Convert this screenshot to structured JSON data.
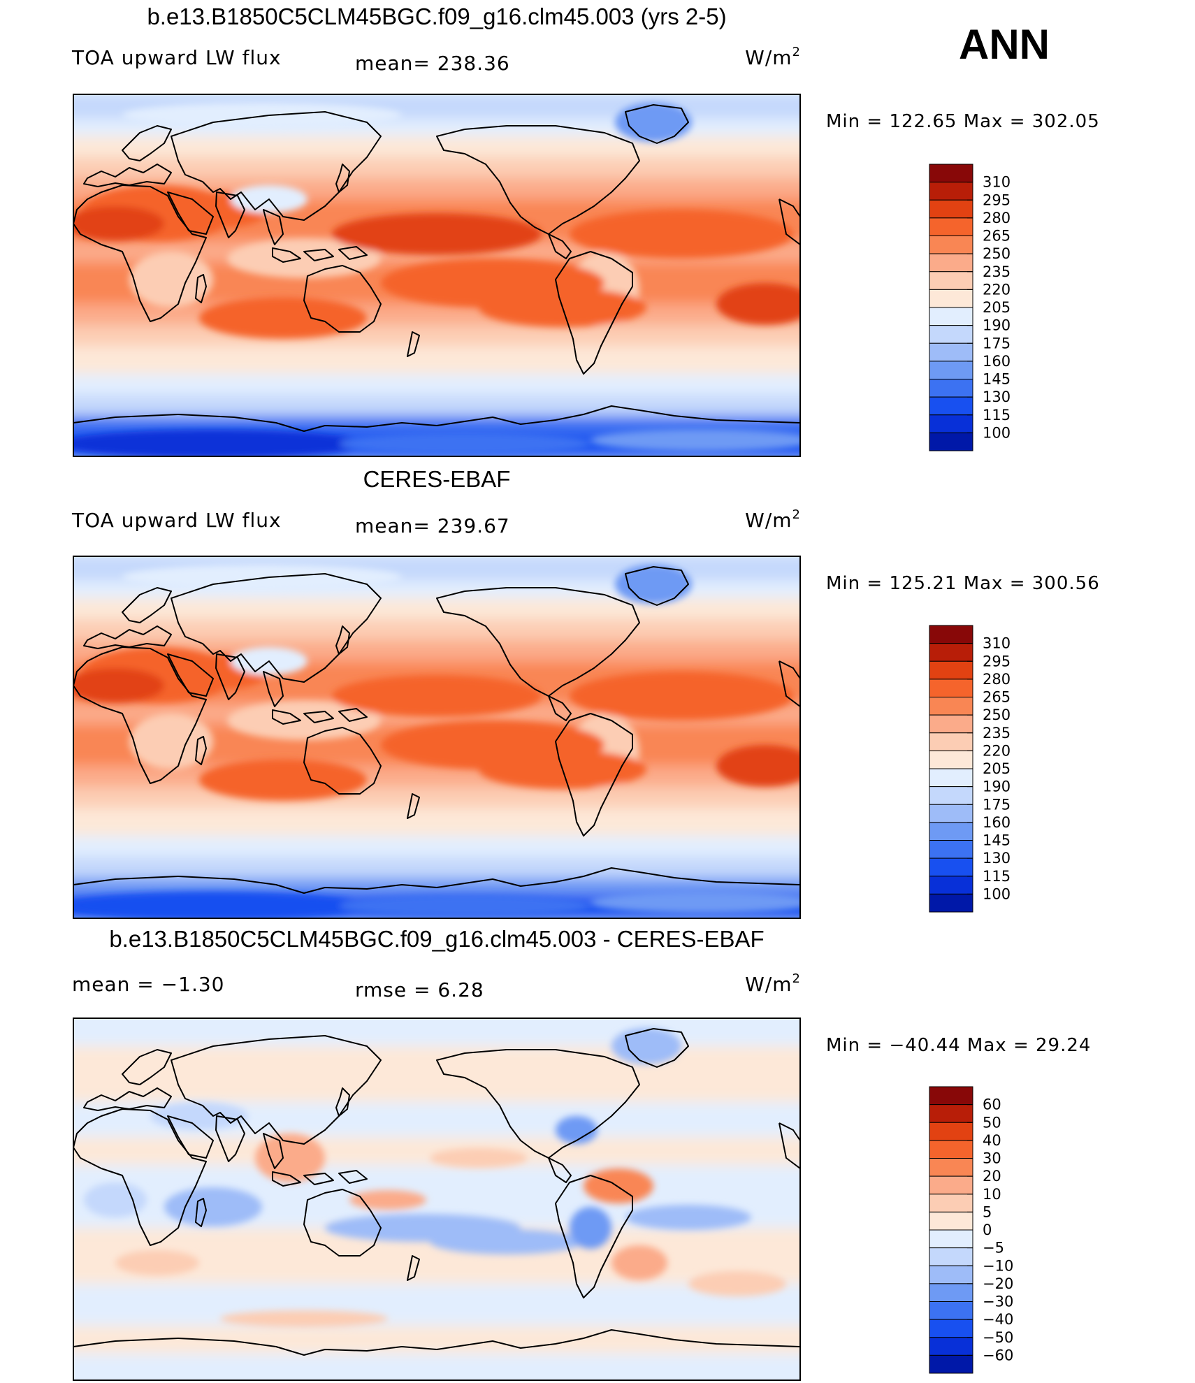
{
  "season": "ANN",
  "colors": {
    "absolute": [
      "#000a80",
      "#0018a8",
      "#0830d8",
      "#1850f0",
      "#3c72f2",
      "#6e9af4",
      "#9ebcf8",
      "#c4d8fc",
      "#e2eefe",
      "#fde8d8",
      "#fccdb4",
      "#fbab8a",
      "#f98654",
      "#f5642c",
      "#e24212",
      "#b81e08",
      "#880808"
    ],
    "difference": [
      "#000a80",
      "#0018a8",
      "#0830d8",
      "#1850f0",
      "#3c72f2",
      "#6e9af4",
      "#9ebcf8",
      "#c4d8fc",
      "#e2eefe",
      "#fde8d8",
      "#fccdb4",
      "#fbab8a",
      "#f98654",
      "#f5642c",
      "#e24212",
      "#b81e08",
      "#880808"
    ]
  },
  "panels": [
    {
      "title": "b.e13.B1850C5CLM45BGC.f09_g16.clm45.003 (yrs 2-5)",
      "left_label": "TOA upward LW flux",
      "mean_text": "mean= 238.36",
      "units_prefix": "W/m",
      "units_exp": "2",
      "stats_text": "Min  =  122.65  Max  =  302.05",
      "legend_ticks": [
        "310",
        "295",
        "280",
        "265",
        "250",
        "235",
        "220",
        "205",
        "190",
        "175",
        "160",
        "145",
        "130",
        "115",
        "100"
      ],
      "field": "model"
    },
    {
      "title": "CERES-EBAF",
      "left_label": "TOA upward LW flux",
      "mean_text": "mean= 239.67",
      "units_prefix": "W/m",
      "units_exp": "2",
      "stats_text": "Min  =  125.21  Max  =  300.56",
      "legend_ticks": [
        "310",
        "295",
        "280",
        "265",
        "250",
        "235",
        "220",
        "205",
        "190",
        "175",
        "160",
        "145",
        "130",
        "115",
        "100"
      ],
      "field": "obs"
    },
    {
      "title": "b.e13.B1850C5CLM45BGC.f09_g16.clm45.003 - CERES-EBAF",
      "left_label": "mean  =    −1.30",
      "mean_text": "rmse  =     6.28",
      "units_prefix": "W/m",
      "units_exp": "2",
      "stats_text": "Min  =  −40.44  Max  =    29.24",
      "legend_ticks": [
        "60",
        "50",
        "40",
        "30",
        "20",
        "10",
        "5",
        "0",
        "−5",
        "−10",
        "−20",
        "−30",
        "−40",
        "−50",
        "−60"
      ],
      "field": "diff"
    }
  ]
}
